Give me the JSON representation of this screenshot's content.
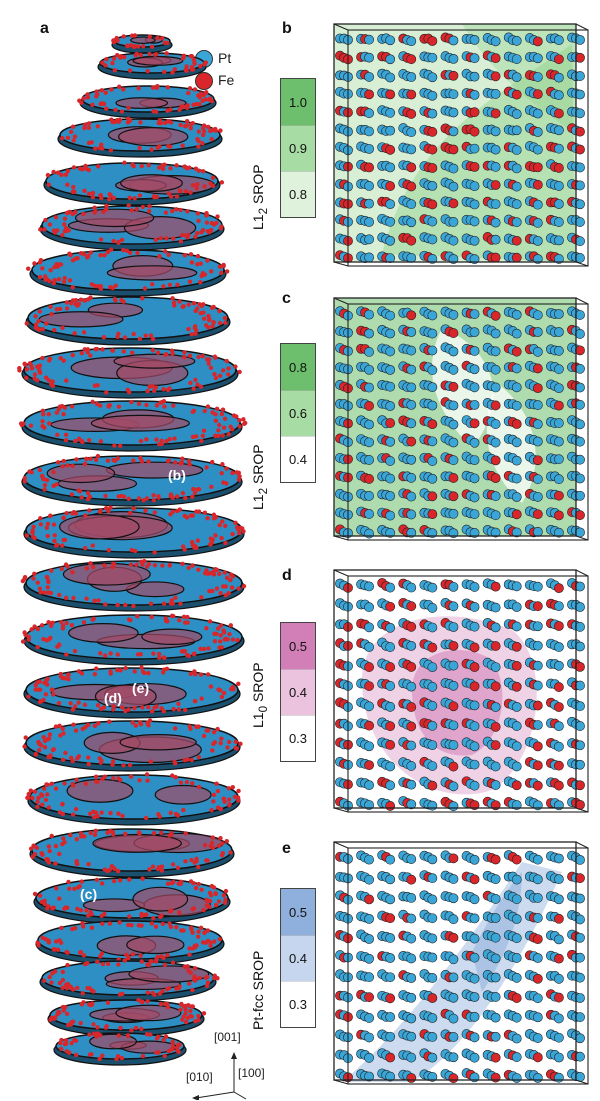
{
  "panels": {
    "a": "a",
    "b": "b",
    "c": "c",
    "d": "d",
    "e": "e"
  },
  "legend": {
    "items": [
      {
        "label": "Pt",
        "color": "#3aa6d8"
      },
      {
        "label": "Fe",
        "color": "#d8262b"
      }
    ]
  },
  "slice_tags": {
    "b": "(b)",
    "c": "(c)",
    "d": "(d)",
    "e": "(e)"
  },
  "axes": {
    "z": "[001]",
    "y": "[010]",
    "x": "[100]"
  },
  "scalebars": [
    {
      "label_main": "L1",
      "label_sub": "2",
      "label_tail": " SROP",
      "ticks": [
        "1.0",
        "0.9",
        "0.8"
      ],
      "colors": [
        "#6dbf6d",
        "#a8dca5",
        "#dff2dc"
      ]
    },
    {
      "label_main": "L1",
      "label_sub": "2",
      "label_tail": " SROP",
      "ticks": [
        "0.8",
        "0.6",
        "0.4"
      ],
      "colors": [
        "#6dbf6d",
        "#a8dca5",
        "#ffffff"
      ]
    },
    {
      "label_main": "L1",
      "label_sub": "0",
      "label_tail": " SROP",
      "ticks": [
        "0.5",
        "0.4",
        "0.3"
      ],
      "colors": [
        "#d27fb8",
        "#ecc3df",
        "#ffffff"
      ]
    },
    {
      "label_main": "Pt-fcc",
      "label_sub": "",
      "label_tail": " SROP",
      "ticks": [
        "0.5",
        "0.4",
        "0.3"
      ],
      "colors": [
        "#8fb0dc",
        "#c6d6ee",
        "#ffffff"
      ]
    }
  ],
  "colors": {
    "pt": "#3aa6d8",
    "fe": "#d8262b",
    "slice_blue": "#2e8fc4"
  }
}
